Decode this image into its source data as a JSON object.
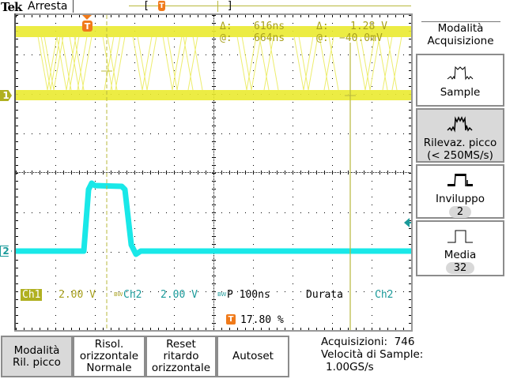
{
  "header": {
    "brand": "Tek",
    "acq_status": "Arresta",
    "bracket_left": "[",
    "bracket_right": "]",
    "trigger_marker": "T"
  },
  "screen": {
    "ch1_marker": "1",
    "ch2_marker": "2",
    "trigger_marker": "T",
    "colors": {
      "ch1": "#e8e82a",
      "ch2": "#19e8e8",
      "trigger": "#f07a1a",
      "cursor": "#b8b83c",
      "readout_ch1": "#a8a01c",
      "readout_ch2": "#1a9a9a"
    }
  },
  "cursors": {
    "time_delta_label": "Δ:",
    "time_delta_value": "616ns",
    "time_at_label": "@:",
    "time_at_value": "664ns",
    "volt_delta_label": "Δ:",
    "volt_delta_value": "1.28 V",
    "volt_at_label": "@:",
    "volt_at_value": "−40.0mV"
  },
  "readouts": {
    "ch1_label": "Ch1",
    "ch1_scale": "2.00 V",
    "bw_icon": "BW",
    "ch2_label": "Ch2",
    "ch2_scale": "2.00 V",
    "timebase": "P 100ns",
    "trigger_type": "Durata",
    "trigger_source": "Ch2",
    "trigger_position": "17.80 %",
    "trigger_icon": "T"
  },
  "side_menu": {
    "title_line1": "Modalità",
    "title_line2": "Acquisizione",
    "items": [
      {
        "label": "Sample",
        "icon": "sample-waveform-icon",
        "selected": false
      },
      {
        "label": "Rilevaz. picco",
        "sub": "(< 250MS/s)",
        "icon": "peak-detect-waveform-icon",
        "selected": true
      },
      {
        "label": "Inviluppo",
        "value": "2",
        "icon": "envelope-waveform-icon",
        "selected": false
      },
      {
        "label": "Media",
        "value": "32",
        "icon": "average-waveform-icon",
        "selected": false
      }
    ]
  },
  "bottom_menu": {
    "items": [
      {
        "line1": "Modalità",
        "line2": "Ril. picco",
        "selected": true
      },
      {
        "line1": "Risol.",
        "line2": "orizzontale",
        "line3": "Normale",
        "selected": false
      },
      {
        "line1": "Reset",
        "line2": "ritardo",
        "line3": "orizzontale",
        "selected": false
      },
      {
        "line1": "Autoset",
        "selected": false
      }
    ]
  },
  "acq_info": {
    "acquisitions_label": "Acquisizioni:",
    "acquisitions_value": "746",
    "sample_rate_label": "Velocità di Sample:",
    "sample_rate_value": "1.00GS/s"
  }
}
